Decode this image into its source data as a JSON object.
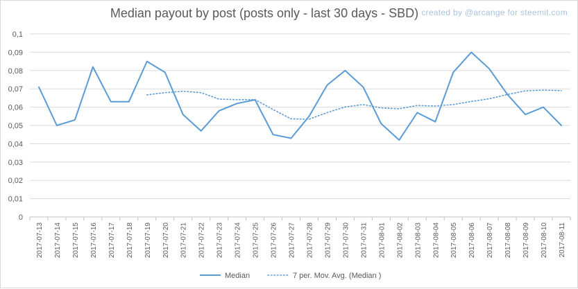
{
  "watermark": "created by @arcange for steemit.com",
  "chart_data": {
    "type": "line",
    "title": "Median payout by post (posts only - last 30 days - SBD)",
    "xlabel": "",
    "ylabel": "",
    "ylim": [
      0,
      0.1
    ],
    "y_ticks": [
      "0",
      "0,01",
      "0,02",
      "0,03",
      "0,04",
      "0,05",
      "0,06",
      "0,07",
      "0,08",
      "0,09",
      "0,1"
    ],
    "grid": true,
    "legend_position": "bottom",
    "categories": [
      "2017-07-13",
      "2017-07-14",
      "2017-07-15",
      "2017-07-16",
      "2017-07-17",
      "2017-07-18",
      "2017-07-19",
      "2017-07-20",
      "2017-07-21",
      "2017-07-22",
      "2017-07-23",
      "2017-07-24",
      "2017-07-25",
      "2017-07-26",
      "2017-07-27",
      "2017-07-28",
      "2017-07-29",
      "2017-07-30",
      "2017-07-31",
      "2017-08-01",
      "2017-08-02",
      "2017-08-03",
      "2017-08-04",
      "2017-08-05",
      "2017-08-06",
      "2017-08-07",
      "2017-08-08",
      "2017-08-09",
      "2017-08-10",
      "2017-08-11"
    ],
    "series": [
      {
        "name": "Median",
        "style": "solid",
        "color": "#5b9bd5",
        "values": [
          0.071,
          0.05,
          0.053,
          0.082,
          0.063,
          0.063,
          0.085,
          0.079,
          0.056,
          0.047,
          0.058,
          0.062,
          0.064,
          0.045,
          0.043,
          0.055,
          0.072,
          0.08,
          0.071,
          0.051,
          0.042,
          0.057,
          0.052,
          0.079,
          0.09,
          0.081,
          0.067,
          0.056,
          0.06,
          0.05
        ]
      },
      {
        "name": "7 per. Mov. Avg. (Median )",
        "style": "dotted",
        "color": "#5b9bd5",
        "values": [
          null,
          null,
          null,
          null,
          null,
          null,
          0.0667,
          0.0679,
          0.0687,
          0.0679,
          0.0644,
          0.0641,
          0.0641,
          0.0587,
          0.0536,
          0.0534,
          0.057,
          0.0601,
          0.0614,
          0.0596,
          0.0591,
          0.0609,
          0.0606,
          0.0614,
          0.0631,
          0.0646,
          0.0669,
          0.0689,
          0.0693,
          0.069
        ]
      }
    ]
  }
}
